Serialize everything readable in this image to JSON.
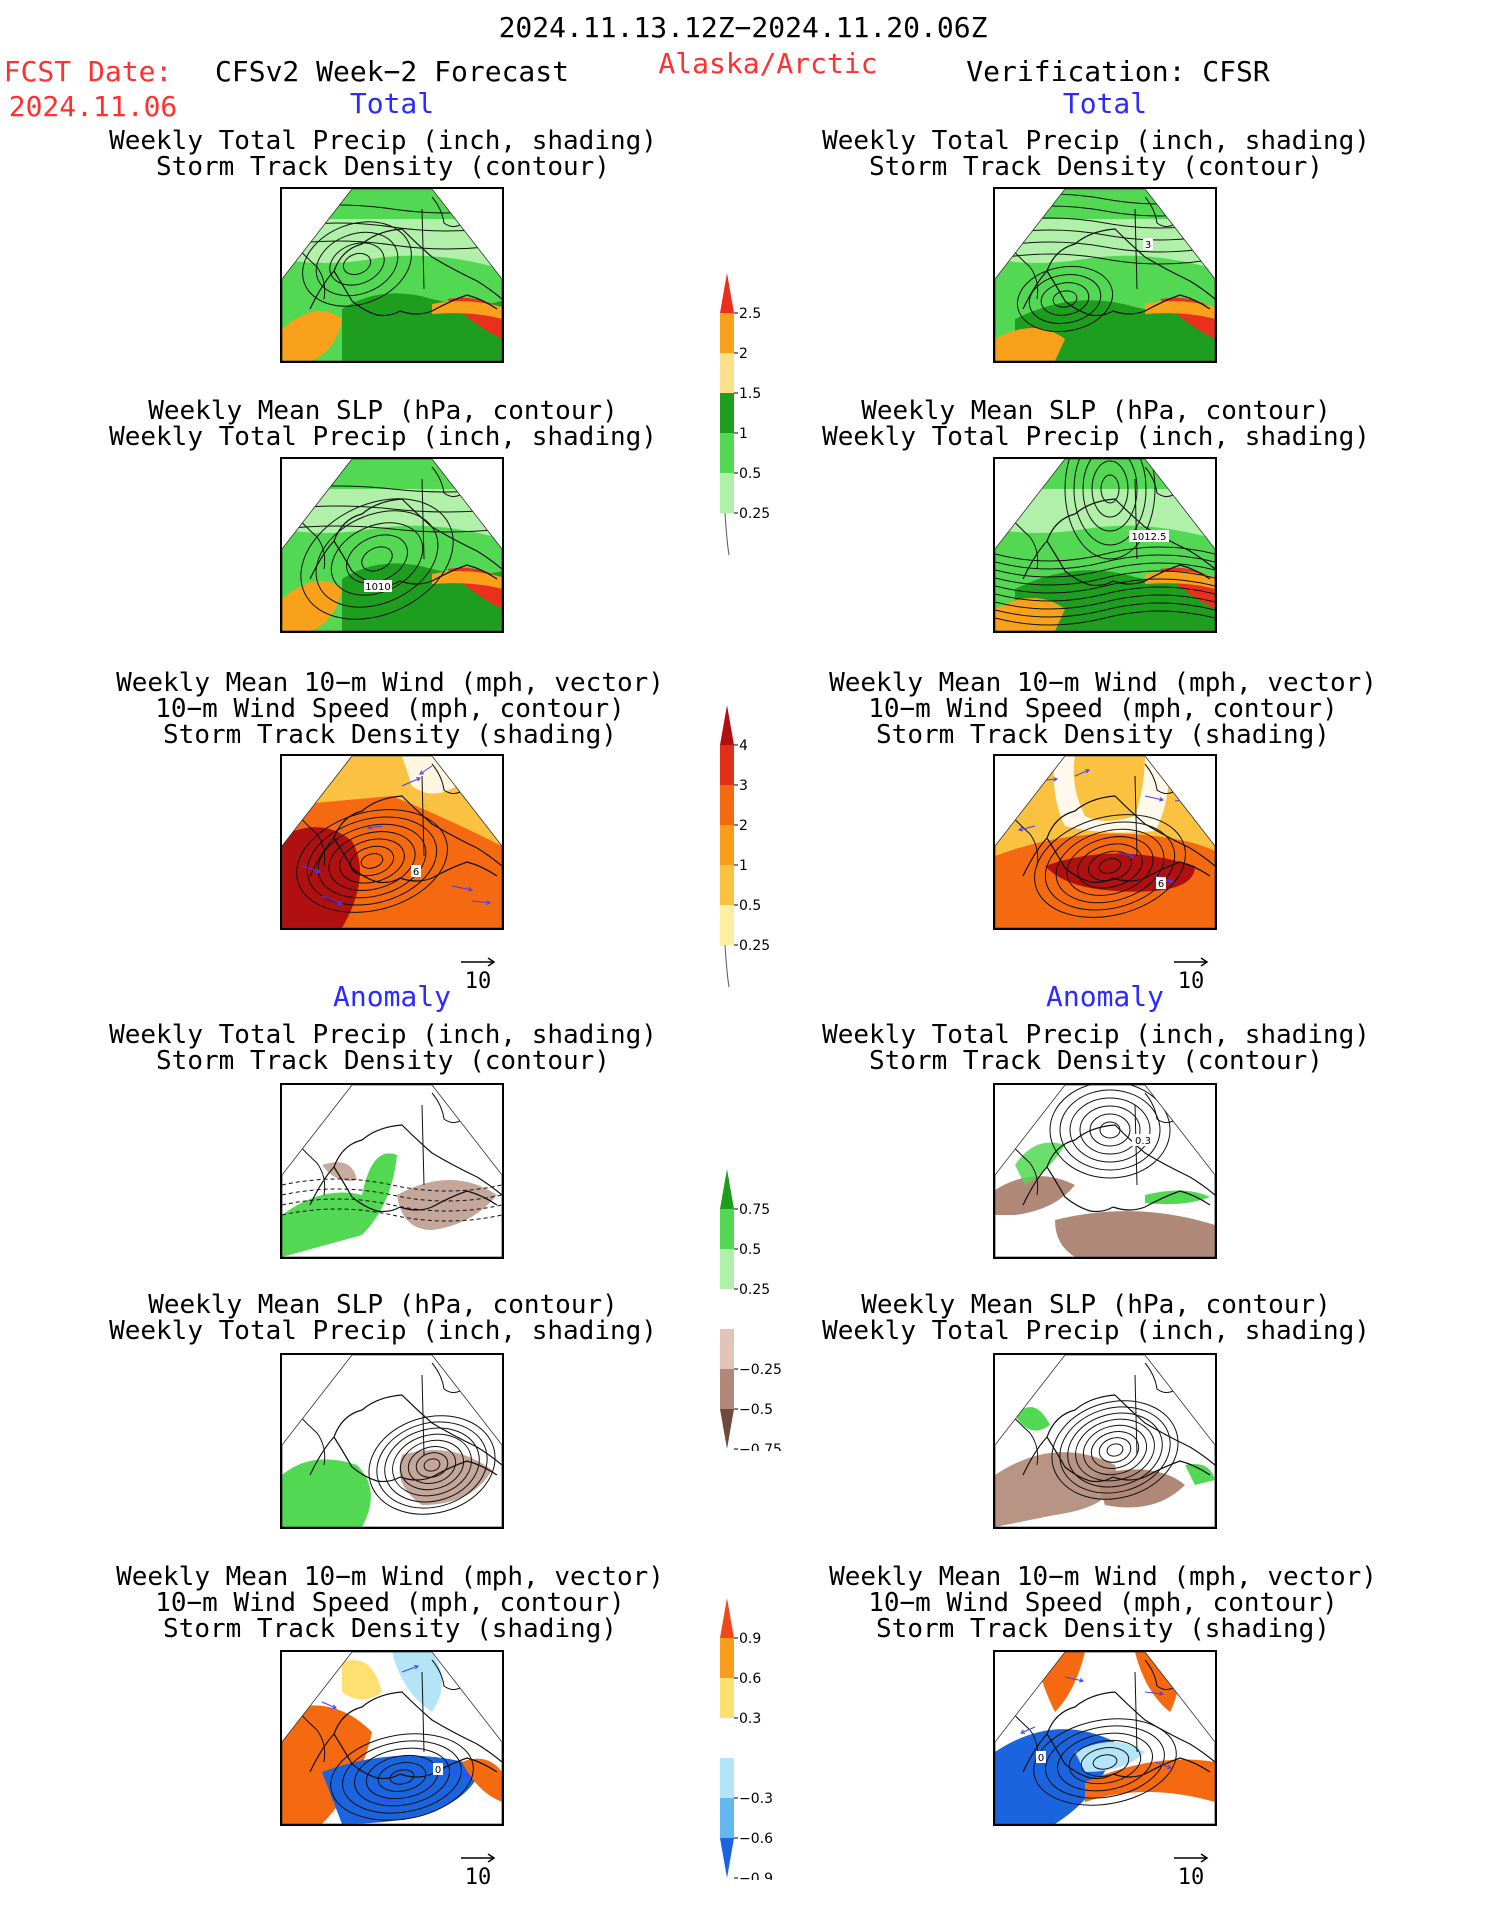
{
  "header": {
    "date_range": "2024.11.13.12Z−2024.11.20.06Z",
    "fcst_label": "FCST Date:",
    "fcst_date": "2024.11.06",
    "model": "CFSv2 Week−2 Forecast",
    "region": "Alaska/Arctic",
    "verification": "Verification: CFSR"
  },
  "sections": {
    "total_left": "Total",
    "total_right": "Total",
    "anomaly_left": "Anomaly",
    "anomaly_right": "Anomaly"
  },
  "titles": {
    "precip_storm": [
      "Weekly Total Precip (inch, shading)",
      "Storm Track Density (contour)"
    ],
    "slp_precip": [
      "Weekly Mean SLP (hPa, contour)",
      "Weekly Total Precip (inch, shading)"
    ],
    "wind_storm": [
      "Weekly Mean 10−m Wind (mph, vector)",
      "10−m Wind Speed (mph, contour)",
      "Storm Track Density (shading)"
    ]
  },
  "vector_reference": "10",
  "contour_labels": {
    "fc_total_slp": "1010",
    "fc_total_wind": "6",
    "ob_total_precip": "3",
    "ob_total_slp": "1012.5",
    "ob_total_wind": "6",
    "ob_anom_precip": "0.3",
    "fc_anom_wind": "0",
    "ob_anom_wind": "0"
  },
  "colorbars": [
    {
      "id": "precip_total",
      "levels": [
        "2.5",
        "2",
        "1.5",
        "1",
        "0.5",
        "0.25"
      ],
      "colors": [
        "#e8301c",
        "#f9a11b",
        "#fde08a",
        "#1e9e1e",
        "#52d852",
        "#b0f0a8"
      ]
    },
    {
      "id": "storm_total",
      "levels": [
        "4",
        "3",
        "2",
        "1",
        "0.5",
        "0.25"
      ],
      "colors": [
        "#b01010",
        "#e03018",
        "#f56a10",
        "#f99d1a",
        "#fbc241",
        "#fdf0a0"
      ]
    },
    {
      "id": "precip_anom",
      "levels": [
        "0.75",
        "0.5",
        "0.25",
        "−0.25",
        "−0.5",
        "−0.75"
      ],
      "colors": [
        "#1e9e1e",
        "#52d852",
        "#b0f0a8",
        "#ffffff",
        "#e3c5b8",
        "#b08878",
        "#6e4a3c"
      ]
    },
    {
      "id": "storm_anom",
      "levels": [
        "0.9",
        "0.6",
        "0.3",
        "−0.3",
        "−0.6",
        "−0.9"
      ],
      "colors": [
        "#f04818",
        "#f99d1a",
        "#fde070",
        "#ffffff",
        "#b4e4f8",
        "#64b8f0",
        "#1a64e0"
      ]
    }
  ],
  "palette": {
    "precip_fill": "#52d852",
    "precip_light": "#b0f0a8",
    "precip_dark": "#1e9e1e",
    "precip_high": "#f9a11b",
    "precip_max": "#e8301c",
    "storm_low": "#fbc241",
    "storm_mid": "#f56a10",
    "storm_high": "#b01010",
    "anom_dry": "#b08878",
    "anom_wet": "#52d852",
    "anom_blue": "#1a64e0",
    "anom_lightblue": "#b4e4f8",
    "vector": "#4040ff"
  }
}
